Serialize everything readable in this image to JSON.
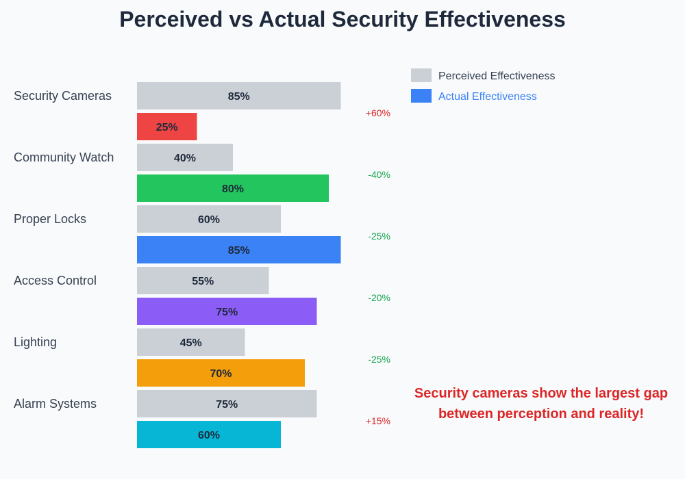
{
  "chart_data": {
    "type": "bar",
    "title": "Perceived vs Actual Security Effectiveness",
    "categories": [
      "Security Cameras",
      "Community Watch",
      "Proper Locks",
      "Access Control",
      "Lighting",
      "Alarm Systems"
    ],
    "series": [
      {
        "name": "Perceived Effectiveness",
        "values": [
          85,
          40,
          60,
          55,
          45,
          75
        ],
        "color": "#cbd0d6"
      },
      {
        "name": "Actual Effectiveness",
        "values": [
          25,
          80,
          85,
          75,
          70,
          60
        ],
        "colors": [
          "#ef4444",
          "#22c55e",
          "#3b82f6",
          "#8b5cf6",
          "#f59e0b",
          "#06b6d4"
        ]
      }
    ],
    "differences": [
      "+60%",
      "-40%",
      "-25%",
      "-20%",
      "-25%",
      "+15%"
    ],
    "xlim": [
      0,
      100
    ],
    "legend_position": "top-right",
    "legend_colors": {
      "perceived": "#cbd0d6",
      "actual": "#3b82f6"
    },
    "annotation": "Security cameras show the largest gap between perception and reality!"
  }
}
